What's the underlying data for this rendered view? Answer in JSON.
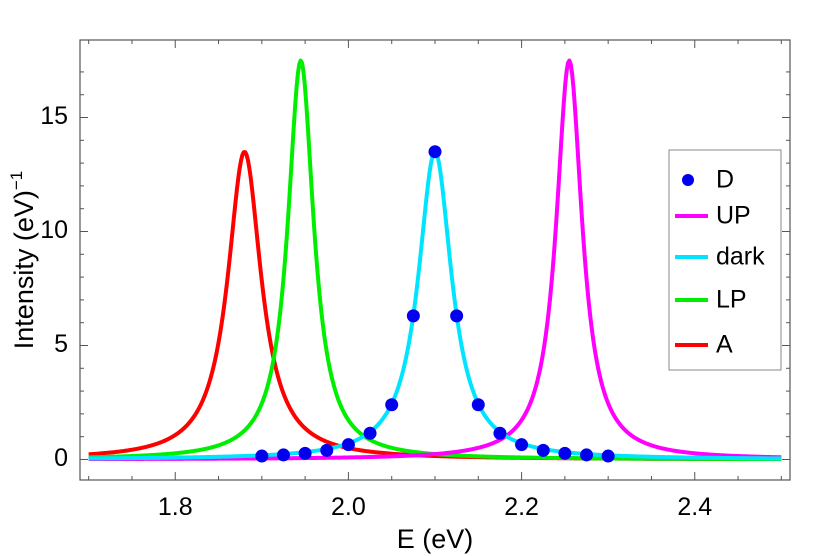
{
  "chart_data": {
    "type": "line",
    "xlabel": "E (eV)",
    "ylabel": "Intensity (eV)",
    "ylabel_superscript": "−1",
    "xlim": [
      1.69,
      2.51
    ],
    "ylim": [
      -0.9,
      18.4
    ],
    "x_ticks": [
      {
        "value": 1.8,
        "label": "1.8"
      },
      {
        "value": 2.0,
        "label": "2.0"
      },
      {
        "value": 2.2,
        "label": "2.2"
      },
      {
        "value": 2.4,
        "label": "2.4"
      }
    ],
    "y_ticks": [
      {
        "value": 0,
        "label": "0"
      },
      {
        "value": 5,
        "label": "5"
      },
      {
        "value": 10,
        "label": "10"
      },
      {
        "value": 15,
        "label": "15"
      }
    ],
    "legend_position": "right",
    "series": [
      {
        "name": "A",
        "kind": "lorentzian",
        "center": 1.88,
        "peak": 13.5,
        "hwhm": 0.0235,
        "color": "#ff0000",
        "xrange": [
          1.7,
          2.5
        ]
      },
      {
        "name": "LP",
        "kind": "lorentzian",
        "center": 1.945,
        "peak": 17.5,
        "hwhm": 0.0182,
        "color": "#00ee00",
        "xrange": [
          1.7,
          2.5
        ]
      },
      {
        "name": "UP",
        "kind": "lorentzian",
        "center": 2.255,
        "peak": 17.5,
        "hwhm": 0.0182,
        "color": "#ff00ff",
        "xrange": [
          1.7,
          2.5
        ]
      },
      {
        "name": "dark",
        "kind": "lorentzian",
        "center": 2.1,
        "peak": 13.5,
        "hwhm": 0.0235,
        "color": "#00e5ff",
        "xrange": [
          1.7,
          2.5
        ]
      }
    ],
    "points": {
      "name": "D",
      "color": "#0000ee",
      "x": [
        1.9,
        1.925,
        1.95,
        1.975,
        2.0,
        2.025,
        2.05,
        2.075,
        2.1,
        2.125,
        2.15,
        2.175,
        2.2,
        2.225,
        2.25,
        2.275,
        2.3
      ],
      "y": [
        0.15,
        0.2,
        0.27,
        0.4,
        0.65,
        1.15,
        2.4,
        6.3,
        13.5,
        6.3,
        2.4,
        1.15,
        0.65,
        0.4,
        0.27,
        0.2,
        0.15
      ]
    },
    "legend": [
      {
        "label": "D",
        "type": "point",
        "color": "#0000ee"
      },
      {
        "label": "UP",
        "type": "line",
        "color": "#ff00ff"
      },
      {
        "label": "dark",
        "type": "line",
        "color": "#00e5ff"
      },
      {
        "label": "LP",
        "type": "line",
        "color": "#00ee00"
      },
      {
        "label": "A",
        "type": "line",
        "color": "#ff0000"
      }
    ]
  }
}
